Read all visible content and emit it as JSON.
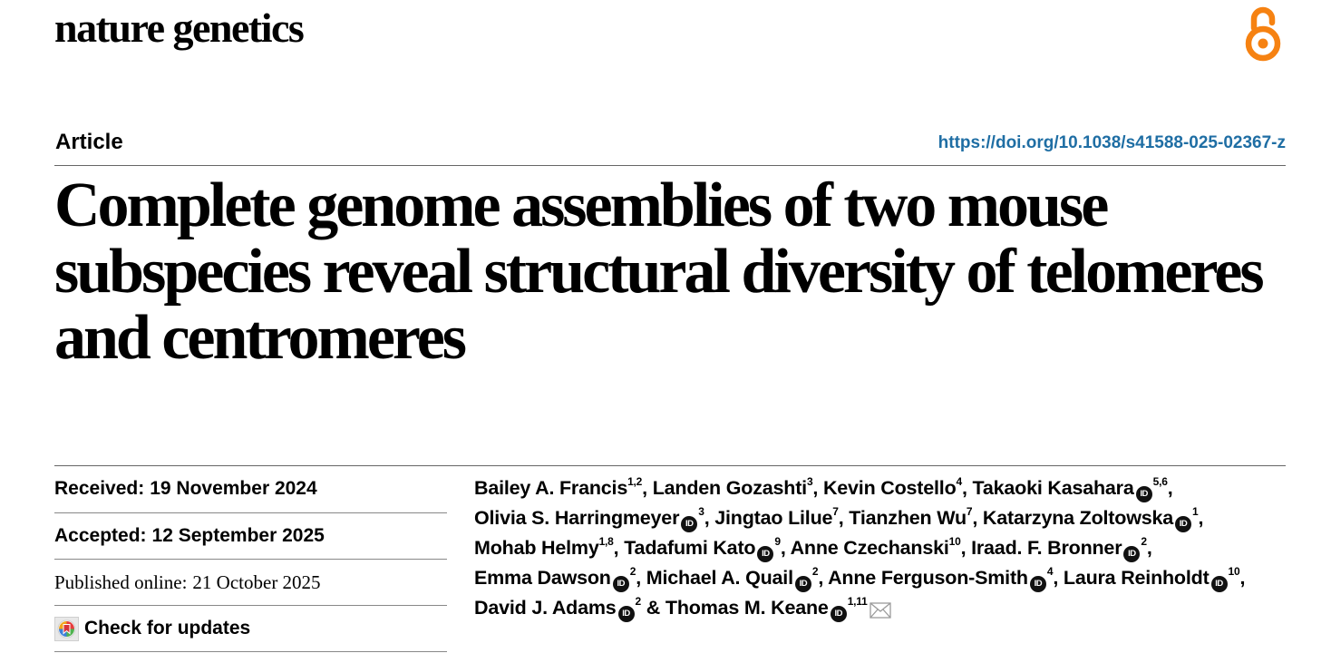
{
  "header": {
    "journal": "nature genetics",
    "open_access_icon": "open-access-icon"
  },
  "article": {
    "type": "Article",
    "doi": "https://doi.org/10.1038/s41588-025-02367-z",
    "title": "Complete genome assemblies of two mouse subspecies reveal structural diversity of telomeres and centromeres"
  },
  "dates": {
    "received_label": "Received:",
    "received_value": "19 November 2024",
    "accepted_label": "Accepted:",
    "accepted_value": "12 September 2025",
    "published_label": "Published online:",
    "published_value": "21 October 2025",
    "check_updates_label": "Check for updates"
  },
  "authors": [
    {
      "name": "Bailey A. Francis",
      "aff": "1,2",
      "orcid": false,
      "sep": ", "
    },
    {
      "name": "Landen Gozashti",
      "aff": "3",
      "orcid": false,
      "sep": ", "
    },
    {
      "name": "Kevin Costello",
      "aff": "4",
      "orcid": false,
      "sep": ", "
    },
    {
      "name": "Takaoki Kasahara",
      "aff": "5,6",
      "orcid": true,
      "sep": ", "
    },
    {
      "name": "Olivia S. Harringmeyer",
      "aff": "3",
      "orcid": true,
      "sep": ", "
    },
    {
      "name": "Jingtao Lilue",
      "aff": "7",
      "orcid": false,
      "sep": ", "
    },
    {
      "name": "Tianzhen Wu",
      "aff": "7",
      "orcid": false,
      "sep": ", "
    },
    {
      "name": "Katarzyna Zoltowska",
      "aff": "1",
      "orcid": true,
      "sep": ", "
    },
    {
      "name": "Mohab Helmy",
      "aff": "1,8",
      "orcid": false,
      "sep": ", "
    },
    {
      "name": "Tadafumi Kato",
      "aff": "9",
      "orcid": true,
      "sep": ", "
    },
    {
      "name": "Anne Czechanski",
      "aff": "10",
      "orcid": false,
      "sep": ", "
    },
    {
      "name": "Iraad. F. Bronner",
      "aff": "2",
      "orcid": true,
      "sep": ", "
    },
    {
      "name": "Emma Dawson",
      "aff": "2",
      "orcid": true,
      "sep": ", "
    },
    {
      "name": "Michael A. Quail",
      "aff": "2",
      "orcid": true,
      "sep": ", "
    },
    {
      "name": "Anne Ferguson-Smith",
      "aff": "4",
      "orcid": true,
      "sep": ", "
    },
    {
      "name": "Laura Reinholdt",
      "aff": "10",
      "orcid": true,
      "sep": ", "
    },
    {
      "name": "David J. Adams",
      "aff": "2",
      "orcid": true,
      "sep": " & "
    },
    {
      "name": "Thomas M. Keane",
      "aff": "1,11",
      "orcid": true,
      "sep": "",
      "corresponding": true
    }
  ],
  "icons": {
    "orcid": "ID",
    "mail": "mail-icon"
  },
  "colors": {
    "doi_link": "#1f6ea4",
    "open_access": "#f68212"
  }
}
